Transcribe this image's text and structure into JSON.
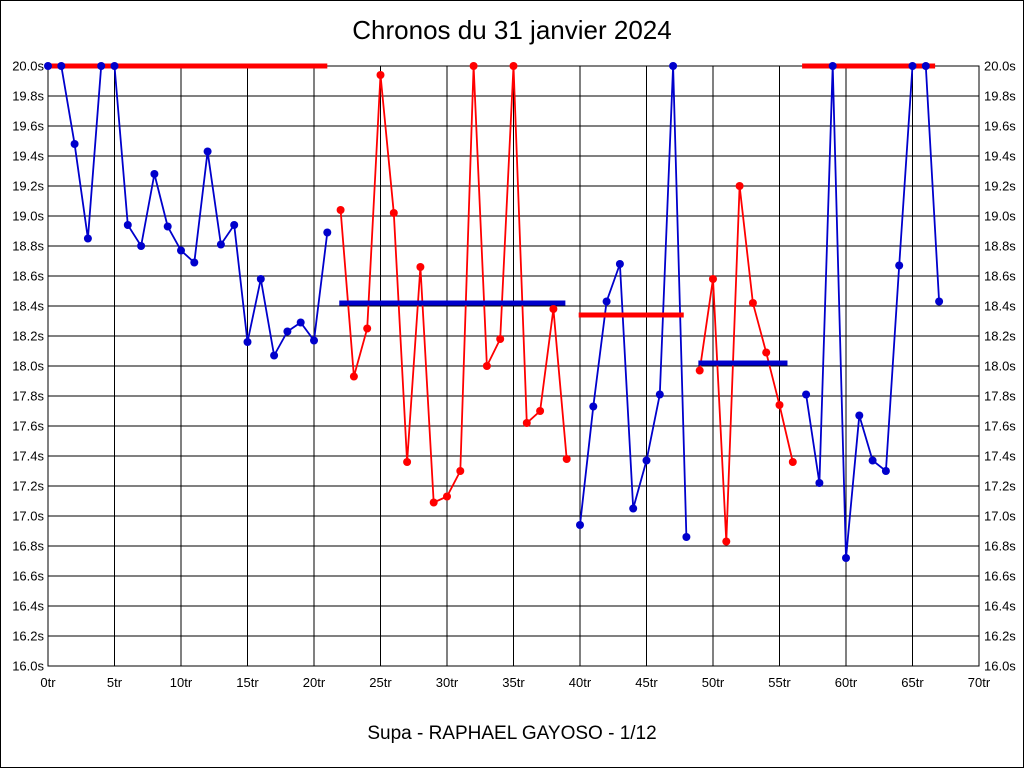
{
  "page": {
    "title": "Chronos du 31 janvier 2024",
    "footer": "Supa - RAPHAEL GAYOSO - 1/12"
  },
  "colors": {
    "blue": "#0000CC",
    "red": "#FF0000",
    "grid": "#000000",
    "background": "#FFFFFF"
  },
  "chart_data": {
    "type": "line",
    "title": "Chronos du 31 janvier 2024",
    "footer_label": "Supa - RAPHAEL GAYOSO - 1/12",
    "x_unit": "tr",
    "y_unit": "s",
    "xlim": [
      0,
      70
    ],
    "ylim": [
      16.0,
      20.0
    ],
    "x_tick_step": 5,
    "y_tick_step": 0.2,
    "grid": true,
    "x_tick_labels": [
      "0tr",
      "5tr",
      "10tr",
      "15tr",
      "20tr",
      "25tr",
      "30tr",
      "35tr",
      "40tr",
      "45tr",
      "50tr",
      "55tr",
      "60tr",
      "65tr",
      "70tr"
    ],
    "y_tick_labels": [
      "20.0s",
      "19.8s",
      "19.6s",
      "19.4s",
      "19.2s",
      "19.0s",
      "18.8s",
      "18.6s",
      "18.4s",
      "18.2s",
      "18.0s",
      "17.8s",
      "17.6s",
      "17.4s",
      "17.2s",
      "17.0s",
      "16.8s",
      "16.6s",
      "16.4s",
      "16.2s",
      "16.0s"
    ],
    "series": [
      {
        "name": "relay-segment-1-blue",
        "color_key": "blue",
        "start_x": 0,
        "values": [
          20.0,
          20.0,
          19.48,
          18.85,
          20.0,
          20.0,
          18.94,
          18.8,
          19.28,
          18.93,
          18.77,
          18.69,
          19.43,
          18.81,
          18.94,
          18.16,
          18.58,
          18.07,
          18.23,
          18.29,
          18.17,
          18.89
        ]
      },
      {
        "name": "relay-segment-2-red",
        "color_key": "red",
        "start_x": 22,
        "values": [
          19.04,
          17.93,
          18.25,
          19.94,
          19.02,
          17.36,
          18.66,
          17.09,
          17.13,
          17.3,
          20.0,
          18.0,
          18.18,
          20.0,
          17.62,
          17.7,
          18.38,
          17.38
        ]
      },
      {
        "name": "relay-segment-3-blue",
        "color_key": "blue",
        "start_x": 40,
        "values": [
          16.94,
          17.73,
          18.43,
          18.68,
          17.05,
          17.37,
          17.81,
          20.0,
          16.86
        ]
      },
      {
        "name": "relay-segment-4-red",
        "color_key": "red",
        "start_x": 49,
        "values": [
          17.97,
          18.58,
          16.83,
          19.2,
          18.42,
          18.09,
          17.74,
          17.36
        ]
      },
      {
        "name": "relay-segment-5-blue",
        "color_key": "blue",
        "start_x": 57,
        "values": [
          17.81,
          17.22,
          20.0,
          16.72,
          17.67,
          17.37,
          17.3,
          18.67,
          20.0,
          20.0,
          18.43
        ]
      }
    ],
    "average_lines": [
      {
        "name": "average-bar-1",
        "color_key": "red",
        "y": 20.0,
        "x_start": 0.0,
        "x_end": 21.0
      },
      {
        "name": "average-bar-2",
        "color_key": "blue",
        "y": 18.42,
        "x_start": 21.9,
        "x_end": 38.9
      },
      {
        "name": "average-bar-3",
        "color_key": "red",
        "y": 18.34,
        "x_start": 39.9,
        "x_end": 47.8
      },
      {
        "name": "average-bar-4",
        "color_key": "blue",
        "y": 18.02,
        "x_start": 48.9,
        "x_end": 55.6
      },
      {
        "name": "average-bar-5",
        "color_key": "red",
        "y": 20.0,
        "x_start": 56.7,
        "x_end": 66.7
      }
    ]
  }
}
